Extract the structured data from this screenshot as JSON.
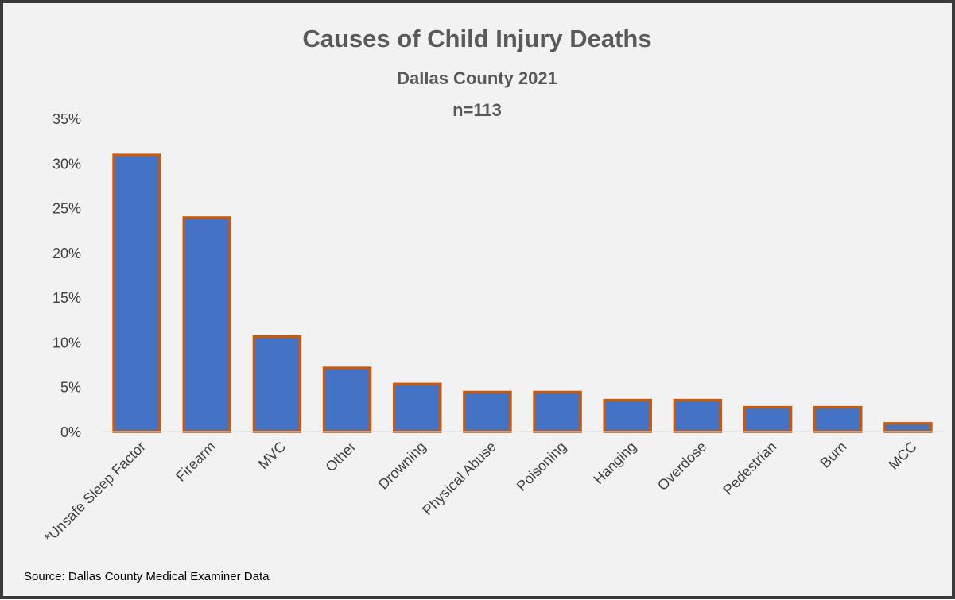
{
  "chart_data": {
    "type": "bar",
    "title": "Causes of Child Injury Deaths",
    "subtitle": "Dallas County 2021",
    "subtitle2": "n=113",
    "categories": [
      "*Unsafe Sleep Factor",
      "Firearm",
      "MVC",
      "Other",
      "Drowning",
      "Physical Abuse",
      "Poisoning",
      "Hanging",
      "Overdose",
      "Pedestrian",
      "Burn",
      "MCC"
    ],
    "values": [
      30.9,
      23.9,
      10.6,
      7.1,
      5.3,
      4.4,
      4.4,
      3.5,
      3.5,
      2.7,
      2.7,
      0.9
    ],
    "ylim": [
      0,
      35
    ],
    "yticks": [
      "0%",
      "5%",
      "10%",
      "15%",
      "20%",
      "25%",
      "30%",
      "35%"
    ],
    "xlabel": "",
    "ylabel": "",
    "grid": false,
    "bar_fill": "#4472c4",
    "bar_border": "#c55a11"
  },
  "source": "Source: Dallas County Medical Examiner Data"
}
